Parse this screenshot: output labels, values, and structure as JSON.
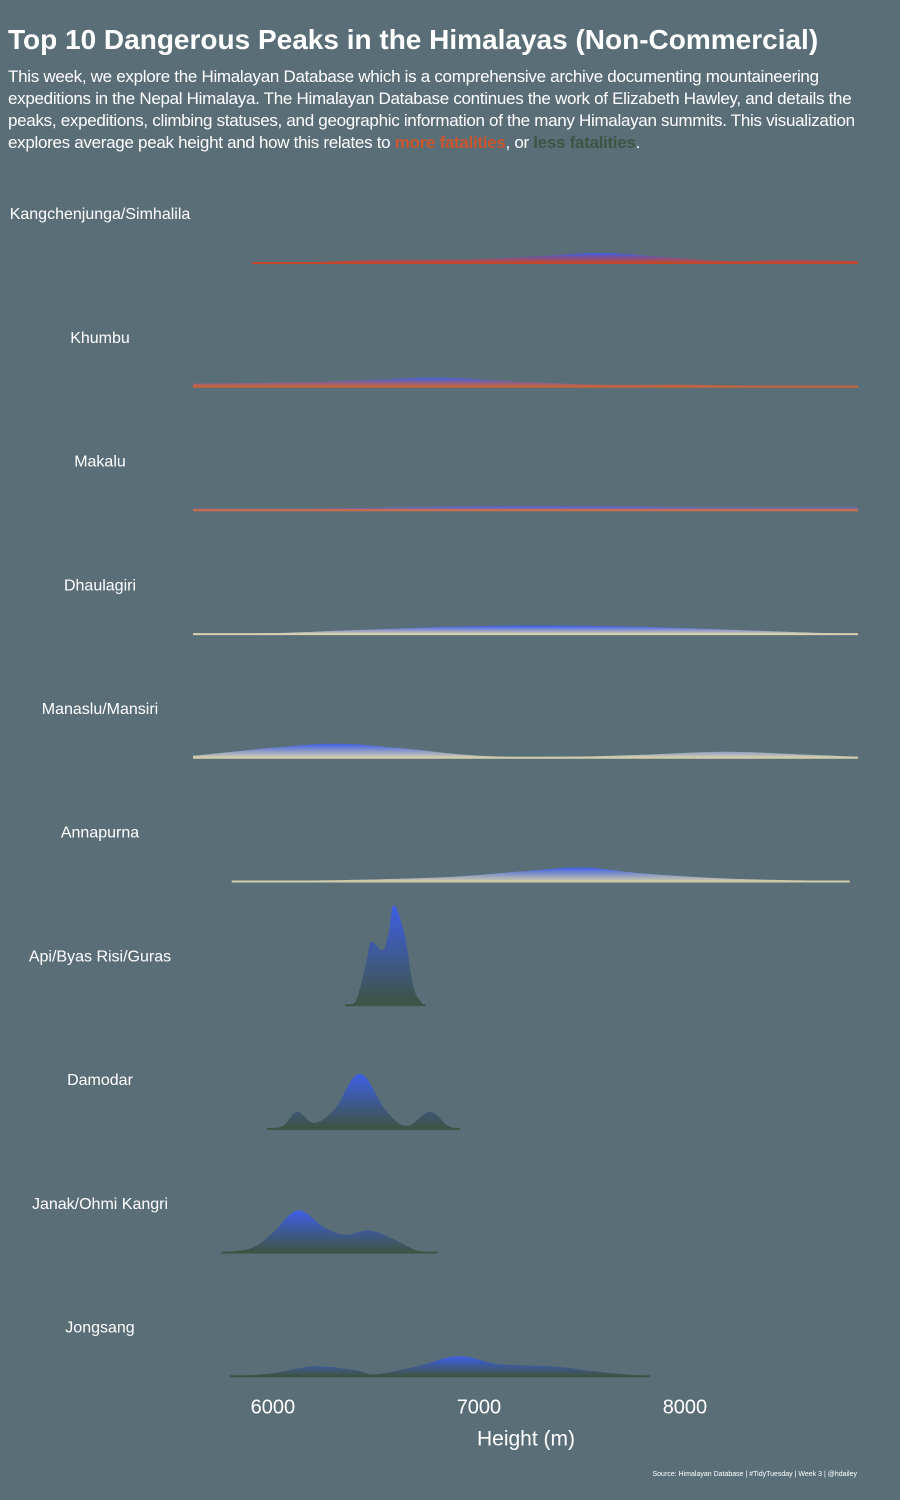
{
  "chart_data": {
    "type": "ridgeline",
    "title": "Top 10 Dangerous Peaks in the Himalayas (Non-Commercial)",
    "subtitle": [
      {
        "text": "This week, we explore the Himalayan Database which is a comprehensive archive documenting mountaineering expeditions in the Nepal Himalaya. The Himalayan Database continues the work of Elizabeth Hawley, and details the peaks, expeditions, climbing statuses, and geographic information of the many Himalayan summits. This visualization explores average peak height and how this relates to "
      },
      {
        "text": "more fatalities",
        "color": "#c8552b"
      },
      {
        "text": ", or "
      },
      {
        "text": "less fatalities",
        "color": "#3d5442"
      },
      {
        "text": "."
      }
    ],
    "x_label": "Height (m)",
    "caption": "Source: Himalayan Database | #TidyTuesday | Week 3 | @hdailey",
    "xlim": [
      5612,
      8840
    ],
    "xticks": [
      6000,
      7000,
      8000
    ],
    "gradient_top": "#3f5fe6",
    "series": [
      {
        "name": "Kangchenjunga/Simhalila",
        "color": "#c4472c",
        "x": [
          5900,
          6200,
          6500,
          7000,
          7300,
          7600,
          7900,
          8200,
          8500,
          8840
        ],
        "values": [
          0,
          1,
          3,
          4,
          7,
          10,
          6,
          2,
          3,
          2
        ]
      },
      {
        "name": "Khumbu",
        "color": "#c8633c",
        "x": [
          5612,
          6000,
          6400,
          6800,
          7200,
          7600,
          8000,
          8400,
          8840
        ],
        "values": [
          3,
          4,
          6,
          9,
          5,
          2,
          2,
          1,
          1
        ]
      },
      {
        "name": "Makalu",
        "color": "#c4704f",
        "x": [
          5612,
          6200,
          7000,
          7600,
          8200,
          8840
        ],
        "values": [
          2,
          2,
          4,
          4,
          3,
          3
        ]
      },
      {
        "name": "Dhaulagiri",
        "color": "#d8d0b0",
        "x": [
          5612,
          6000,
          6400,
          7000,
          7600,
          8000,
          8400,
          8840
        ],
        "values": [
          0,
          1,
          4,
          8,
          8,
          6,
          3,
          0
        ]
      },
      {
        "name": "Manaslu/Mansiri",
        "color": "#d2ceac",
        "x": [
          5612,
          6000,
          6300,
          6600,
          7000,
          7400,
          7800,
          8200,
          8600,
          8840
        ],
        "values": [
          2,
          10,
          14,
          10,
          2,
          1,
          3,
          6,
          3,
          1
        ]
      },
      {
        "name": "Annapurna",
        "color": "#d0cca8",
        "x": [
          5800,
          6200,
          6800,
          7200,
          7500,
          7800,
          8200,
          8600,
          8800
        ],
        "values": [
          0,
          1,
          4,
          10,
          14,
          8,
          3,
          1,
          0
        ]
      },
      {
        "name": "Api/Byas Risi/Guras",
        "color": "#3d5442",
        "x": [
          6350,
          6400,
          6450,
          6476,
          6530,
          6560,
          6587,
          6640,
          6680,
          6720,
          6740
        ],
        "values": [
          0,
          3,
          40,
          63,
          55,
          70,
          100,
          70,
          20,
          3,
          0
        ]
      },
      {
        "name": "Damodar",
        "color": "#3d5442",
        "x": [
          5970,
          6050,
          6117,
          6200,
          6300,
          6422,
          6550,
          6650,
          6762,
          6850,
          6910
        ],
        "values": [
          0,
          3,
          17,
          6,
          20,
          55,
          18,
          3,
          17,
          3,
          0
        ]
      },
      {
        "name": "Janak/Ohmi Kangri",
        "color": "#3d5442",
        "x": [
          5750,
          5900,
          6000,
          6121,
          6250,
          6350,
          6471,
          6600,
          6700,
          6800
        ],
        "values": [
          0,
          5,
          20,
          42,
          25,
          18,
          22,
          12,
          2,
          0
        ]
      },
      {
        "name": "Jongsang",
        "color": "#3d5442",
        "x": [
          5790,
          6000,
          6200,
          6400,
          6500,
          6700,
          6900,
          7100,
          7350,
          7600,
          7830
        ],
        "values": [
          0,
          3,
          10,
          6,
          2,
          10,
          20,
          12,
          10,
          4,
          0
        ]
      }
    ]
  }
}
